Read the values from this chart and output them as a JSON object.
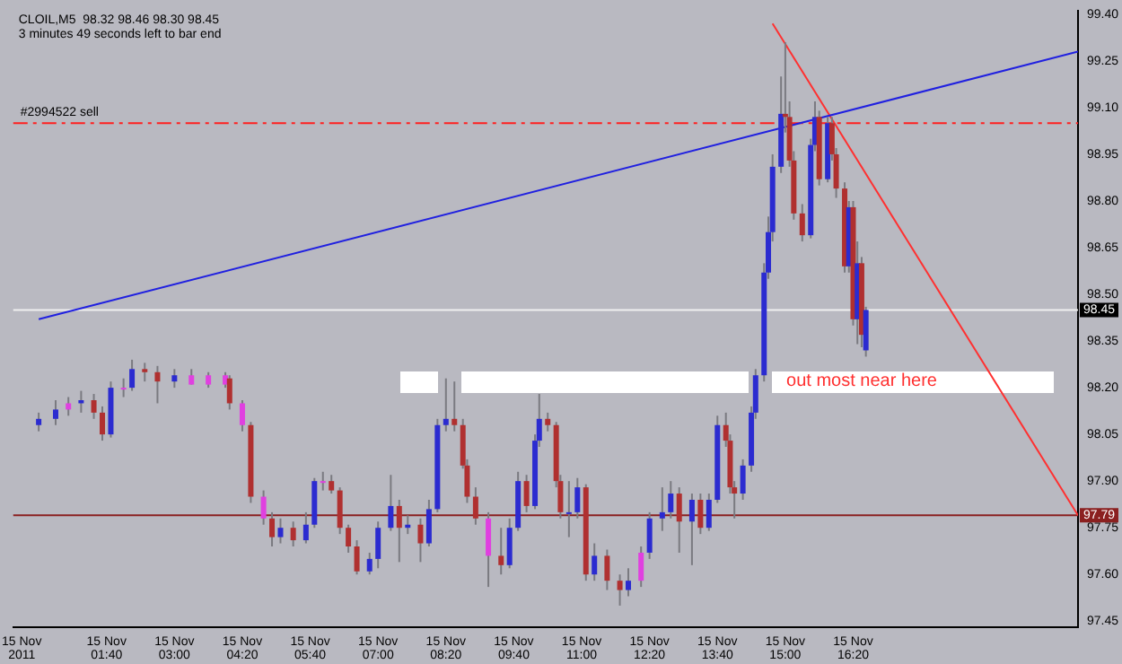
{
  "chart_data": {
    "type": "candlestick",
    "title": "CLOIL,M5  98.32 98.46 98.30 98.45",
    "subtitle": "3 minutes 49 seconds left to bar end",
    "xlim": [
      "2011-11-14T23:50",
      "2011-11-15T20:45"
    ],
    "ylim": [
      97.43,
      99.41
    ],
    "xticks": [
      {
        "value": "2011-11-15T00:00",
        "label": "15 Nov 2011"
      },
      {
        "value": "2011-11-15T01:40",
        "label": "15 Nov 01:40"
      },
      {
        "value": "2011-11-15T03:00",
        "label": "15 Nov 03:00"
      },
      {
        "value": "2011-11-15T04:20",
        "label": "15 Nov 04:20"
      },
      {
        "value": "2011-11-15T05:40",
        "label": "15 Nov 05:40"
      },
      {
        "value": "2011-11-15T07:00",
        "label": "15 Nov 07:00"
      },
      {
        "value": "2011-11-15T08:20",
        "label": "15 Nov 08:20"
      },
      {
        "value": "2011-11-15T09:40",
        "label": "15 Nov 09:40"
      },
      {
        "value": "2011-11-15T11:00",
        "label": "15 Nov 11:00"
      },
      {
        "value": "2011-11-15T12:20",
        "label": "15 Nov 12:20"
      },
      {
        "value": "2011-11-15T13:40",
        "label": "15 Nov 13:40"
      },
      {
        "value": "2011-11-15T15:00",
        "label": "15 Nov 15:00"
      },
      {
        "value": "2011-11-15T16:20",
        "label": "15 Nov 16:20"
      }
    ],
    "yticks": [
      {
        "value": 99.4,
        "label": "99.40"
      },
      {
        "value": 99.25,
        "label": "99.25"
      },
      {
        "value": 99.1,
        "label": "99.10"
      },
      {
        "value": 98.95,
        "label": "98.95"
      },
      {
        "value": 98.8,
        "label": "98.80"
      },
      {
        "value": 98.65,
        "label": "98.65"
      },
      {
        "value": 98.5,
        "label": "98.50"
      },
      {
        "value": 98.35,
        "label": "98.35"
      },
      {
        "value": 98.2,
        "label": "98.20"
      },
      {
        "value": 98.05,
        "label": "98.05"
      },
      {
        "value": 97.9,
        "label": "97.90"
      },
      {
        "value": 97.75,
        "label": "97.75"
      },
      {
        "value": 97.6,
        "label": "97.60"
      },
      {
        "value": 97.45,
        "label": "97.45"
      }
    ],
    "grid": false,
    "legend": false,
    "ref_lines": [
      {
        "axis": "y",
        "value": 99.05,
        "label": "#2994522 sell",
        "color": "#ff2020",
        "line_style": "dashed"
      },
      {
        "axis": "y",
        "value": 98.45,
        "label": "98.45",
        "color": "#f0f0f0"
      },
      {
        "axis": "y",
        "value": 97.79,
        "label": "97.79",
        "color": "#8b2020"
      }
    ],
    "annotations": [
      "out most near here"
    ],
    "series": [
      {
        "type": "line",
        "color": "#2020e0",
        "x": [
          "2011-11-15T00:20",
          "2011-11-15T20:45"
        ],
        "values": [
          98.42,
          99.28
        ]
      },
      {
        "type": "line",
        "color": "#ff3030",
        "x": [
          "2011-11-15T14:45",
          "2011-11-15T20:45"
        ],
        "values": [
          99.37,
          97.79
        ]
      },
      {
        "x": [
          "2011-11-15T00:20",
          "2011-11-15T00:40",
          "2011-11-15T00:55",
          "2011-11-15T01:10",
          "2011-11-15T01:25",
          "2011-11-15T01:35",
          "2011-11-15T01:45",
          "2011-11-15T02:00",
          "2011-11-15T02:10",
          "2011-11-15T02:25",
          "2011-11-15T02:40",
          "2011-11-15T03:00",
          "2011-11-15T03:20",
          "2011-11-15T03:40",
          "2011-11-15T04:00",
          "2011-11-15T04:05",
          "2011-11-15T04:20",
          "2011-11-15T04:30",
          "2011-11-15T04:45",
          "2011-11-15T04:55",
          "2011-11-15T05:05",
          "2011-11-15T05:20",
          "2011-11-15T05:35",
          "2011-11-15T05:45",
          "2011-11-15T05:55",
          "2011-11-15T06:05",
          "2011-11-15T06:15",
          "2011-11-15T06:25",
          "2011-11-15T06:35",
          "2011-11-15T06:50",
          "2011-11-15T07:00",
          "2011-11-15T07:15",
          "2011-11-15T07:25",
          "2011-11-15T07:35",
          "2011-11-15T07:50",
          "2011-11-15T08:00",
          "2011-11-15T08:10",
          "2011-11-15T08:20",
          "2011-11-15T08:30",
          "2011-11-15T08:40",
          "2011-11-15T08:45",
          "2011-11-15T08:55",
          "2011-11-15T09:10",
          "2011-11-15T09:25",
          "2011-11-15T09:35",
          "2011-11-15T09:45",
          "2011-11-15T09:55",
          "2011-11-15T10:05",
          "2011-11-15T10:10",
          "2011-11-15T10:20",
          "2011-11-15T10:30",
          "2011-11-15T10:35",
          "2011-11-15T10:45",
          "2011-11-15T10:55",
          "2011-11-15T11:05",
          "2011-11-15T11:15",
          "2011-11-15T11:30",
          "2011-11-15T11:45",
          "2011-11-15T11:55",
          "2011-11-15T12:10",
          "2011-11-15T12:20",
          "2011-11-15T12:35",
          "2011-11-15T12:45",
          "2011-11-15T12:55",
          "2011-11-15T13:10",
          "2011-11-15T13:20",
          "2011-11-15T13:30",
          "2011-11-15T13:40",
          "2011-11-15T13:50",
          "2011-11-15T13:55",
          "2011-11-15T14:00",
          "2011-11-15T14:10",
          "2011-11-15T14:20",
          "2011-11-15T14:25",
          "2011-11-15T14:35",
          "2011-11-15T14:40",
          "2011-11-15T14:45",
          "2011-11-15T14:55",
          "2011-11-15T15:00",
          "2011-11-15T15:05",
          "2011-11-15T15:10",
          "2011-11-15T15:20",
          "2011-11-15T15:30",
          "2011-11-15T15:35",
          "2011-11-15T15:40",
          "2011-11-15T15:50",
          "2011-11-15T15:55",
          "2011-11-15T16:00",
          "2011-11-15T16:10",
          "2011-11-15T16:15",
          "2011-11-15T16:20",
          "2011-11-15T16:25",
          "2011-11-15T16:30",
          "2011-11-15T16:35"
        ],
        "ohlc": [
          [
            98.08,
            98.12,
            98.06,
            98.1
          ],
          [
            98.1,
            98.16,
            98.08,
            98.13
          ],
          [
            98.13,
            98.17,
            98.11,
            98.15
          ],
          [
            98.15,
            98.19,
            98.12,
            98.16
          ],
          [
            98.16,
            98.18,
            98.1,
            98.12
          ],
          [
            98.12,
            98.14,
            98.03,
            98.05
          ],
          [
            98.05,
            98.22,
            98.04,
            98.2
          ],
          [
            98.2,
            98.23,
            98.17,
            98.2
          ],
          [
            98.2,
            98.29,
            98.19,
            98.26
          ],
          [
            98.26,
            98.28,
            98.22,
            98.25
          ],
          [
            98.25,
            98.27,
            98.15,
            98.22
          ],
          [
            98.22,
            98.26,
            98.2,
            98.24
          ],
          [
            98.24,
            98.26,
            98.21,
            98.21
          ],
          [
            98.21,
            98.25,
            98.2,
            98.24
          ],
          [
            98.24,
            98.25,
            98.2,
            98.21
          ],
          [
            98.23,
            98.24,
            98.13,
            98.15
          ],
          [
            98.15,
            98.16,
            98.06,
            98.08
          ],
          [
            98.08,
            98.09,
            97.83,
            97.85
          ],
          [
            97.85,
            97.87,
            97.76,
            97.78
          ],
          [
            97.78,
            97.8,
            97.69,
            97.72
          ],
          [
            97.72,
            97.78,
            97.7,
            97.75
          ],
          [
            97.75,
            97.77,
            97.69,
            97.71
          ],
          [
            97.71,
            97.8,
            97.7,
            97.76
          ],
          [
            97.76,
            97.91,
            97.75,
            97.9
          ],
          [
            97.9,
            97.93,
            97.87,
            97.9
          ],
          [
            97.9,
            97.92,
            97.86,
            97.87
          ],
          [
            97.87,
            97.88,
            97.73,
            97.75
          ],
          [
            97.75,
            97.76,
            97.67,
            97.69
          ],
          [
            97.69,
            97.71,
            97.6,
            97.61
          ],
          [
            97.61,
            97.67,
            97.6,
            97.65
          ],
          [
            97.65,
            97.77,
            97.62,
            97.75
          ],
          [
            97.75,
            97.92,
            97.74,
            97.82
          ],
          [
            97.82,
            97.84,
            97.64,
            97.75
          ],
          [
            97.75,
            97.79,
            97.73,
            97.76
          ],
          [
            97.76,
            97.78,
            97.64,
            97.7
          ],
          [
            97.7,
            97.84,
            97.69,
            97.81
          ],
          [
            97.81,
            98.1,
            97.8,
            98.08
          ],
          [
            98.08,
            98.23,
            98.06,
            98.1
          ],
          [
            98.1,
            98.22,
            98.06,
            98.08
          ],
          [
            98.08,
            98.1,
            97.94,
            97.95
          ],
          [
            97.95,
            97.97,
            97.83,
            97.85
          ],
          [
            97.85,
            97.88,
            97.76,
            97.78
          ],
          [
            97.78,
            97.8,
            97.56,
            97.66
          ],
          [
            97.66,
            97.75,
            97.6,
            97.63
          ],
          [
            97.63,
            97.78,
            97.62,
            97.75
          ],
          [
            97.75,
            97.93,
            97.74,
            97.9
          ],
          [
            97.9,
            97.92,
            97.8,
            97.82
          ],
          [
            97.82,
            98.05,
            97.81,
            98.03
          ],
          [
            98.03,
            98.18,
            98.01,
            98.1
          ],
          [
            98.1,
            98.12,
            98.06,
            98.08
          ],
          [
            98.08,
            98.09,
            97.88,
            97.9
          ],
          [
            97.9,
            97.92,
            97.78,
            97.8
          ],
          [
            97.8,
            97.9,
            97.72,
            97.8
          ],
          [
            97.8,
            97.91,
            97.78,
            97.88
          ],
          [
            97.88,
            97.89,
            97.58,
            97.6
          ],
          [
            97.6,
            97.7,
            97.58,
            97.66
          ],
          [
            97.66,
            97.68,
            97.55,
            97.58
          ],
          [
            97.58,
            97.6,
            97.5,
            97.55
          ],
          [
            97.55,
            97.62,
            97.53,
            97.58
          ],
          [
            97.58,
            97.69,
            97.56,
            97.67
          ],
          [
            97.67,
            97.8,
            97.65,
            97.78
          ],
          [
            97.78,
            97.88,
            97.74,
            97.8
          ],
          [
            97.8,
            97.9,
            97.78,
            97.86
          ],
          [
            97.86,
            97.88,
            97.67,
            97.77
          ],
          [
            97.77,
            97.86,
            97.63,
            97.84
          ],
          [
            97.84,
            97.86,
            97.73,
            97.75
          ],
          [
            97.75,
            97.86,
            97.74,
            97.84
          ],
          [
            97.84,
            98.11,
            97.83,
            98.08
          ],
          [
            98.08,
            98.12,
            98.01,
            98.03
          ],
          [
            98.03,
            98.05,
            97.86,
            97.88
          ],
          [
            97.88,
            97.9,
            97.78,
            97.86
          ],
          [
            97.86,
            97.97,
            97.84,
            97.95
          ],
          [
            97.95,
            98.14,
            97.93,
            98.12
          ],
          [
            98.12,
            98.26,
            98.1,
            98.24
          ],
          [
            98.24,
            98.6,
            98.22,
            98.57
          ],
          [
            98.57,
            98.75,
            98.55,
            98.7
          ],
          [
            98.7,
            98.95,
            98.67,
            98.91
          ],
          [
            98.91,
            99.2,
            98.89,
            99.08
          ],
          [
            99.08,
            99.31,
            99.02,
            99.07
          ],
          [
            99.07,
            99.12,
            98.91,
            98.93
          ],
          [
            98.93,
            98.96,
            98.74,
            98.76
          ],
          [
            98.76,
            98.79,
            98.67,
            98.69
          ],
          [
            98.69,
            99.0,
            98.68,
            98.98
          ],
          [
            98.98,
            99.12,
            98.96,
            99.07
          ],
          [
            99.07,
            99.09,
            98.85,
            98.87
          ],
          [
            98.87,
            99.07,
            98.86,
            99.05
          ],
          [
            99.05,
            99.07,
            98.93,
            98.95
          ],
          [
            98.95,
            98.97,
            98.81,
            98.84
          ],
          [
            98.84,
            98.86,
            98.57,
            98.59
          ],
          [
            98.59,
            98.8,
            98.57,
            98.78
          ],
          [
            98.78,
            98.8,
            98.4,
            98.42
          ],
          [
            98.42,
            98.67,
            98.34,
            98.6
          ],
          [
            98.6,
            98.62,
            98.33,
            98.37
          ],
          [
            98.32,
            98.46,
            98.3,
            98.45
          ]
        ],
        "colors": [
          "#2b2bd0",
          "#2b2bd0",
          "#e040e0",
          "#2b2bd0",
          "#b03030",
          "#b03030",
          "#2b2bd0",
          "#e040e0",
          "#2b2bd0",
          "#b03030",
          "#b03030",
          "#2b2bd0",
          "#e040e0",
          "#e040e0",
          "#e040e0",
          "#b03030",
          "#e040e0",
          "#b03030",
          "#e040e0",
          "#b03030",
          "#2b2bd0",
          "#b03030",
          "#2b2bd0",
          "#2b2bd0",
          "#e040e0",
          "#b03030",
          "#b03030",
          "#b03030",
          "#b03030",
          "#2b2bd0",
          "#2b2bd0",
          "#2b2bd0",
          "#b03030",
          "#2b2bd0",
          "#b03030",
          "#2b2bd0",
          "#2b2bd0",
          "#2b2bd0",
          "#b03030",
          "#b03030",
          "#b03030",
          "#b03030",
          "#e040e0",
          "#b03030",
          "#2b2bd0",
          "#2b2bd0",
          "#b03030",
          "#2b2bd0",
          "#2b2bd0",
          "#b03030",
          "#b03030",
          "#b03030",
          "#2b2bd0",
          "#2b2bd0",
          "#b03030",
          "#2b2bd0",
          "#b03030",
          "#b03030",
          "#2b2bd0",
          "#e040e0",
          "#2b2bd0",
          "#2b2bd0",
          "#2b2bd0",
          "#b03030",
          "#2b2bd0",
          "#b03030",
          "#2b2bd0",
          "#2b2bd0",
          "#b03030",
          "#b03030",
          "#b03030",
          "#2b2bd0",
          "#2b2bd0",
          "#2b2bd0",
          "#2b2bd0",
          "#2b2bd0",
          "#2b2bd0",
          "#2b2bd0",
          "#b03030",
          "#b03030",
          "#b03030",
          "#b03030",
          "#2b2bd0",
          "#2b2bd0",
          "#b03030",
          "#2b2bd0",
          "#b03030",
          "#b03030",
          "#b03030",
          "#2b2bd0",
          "#b03030",
          "#2b2bd0",
          "#b03030",
          "#2b2bd0"
        ]
      }
    ]
  }
}
